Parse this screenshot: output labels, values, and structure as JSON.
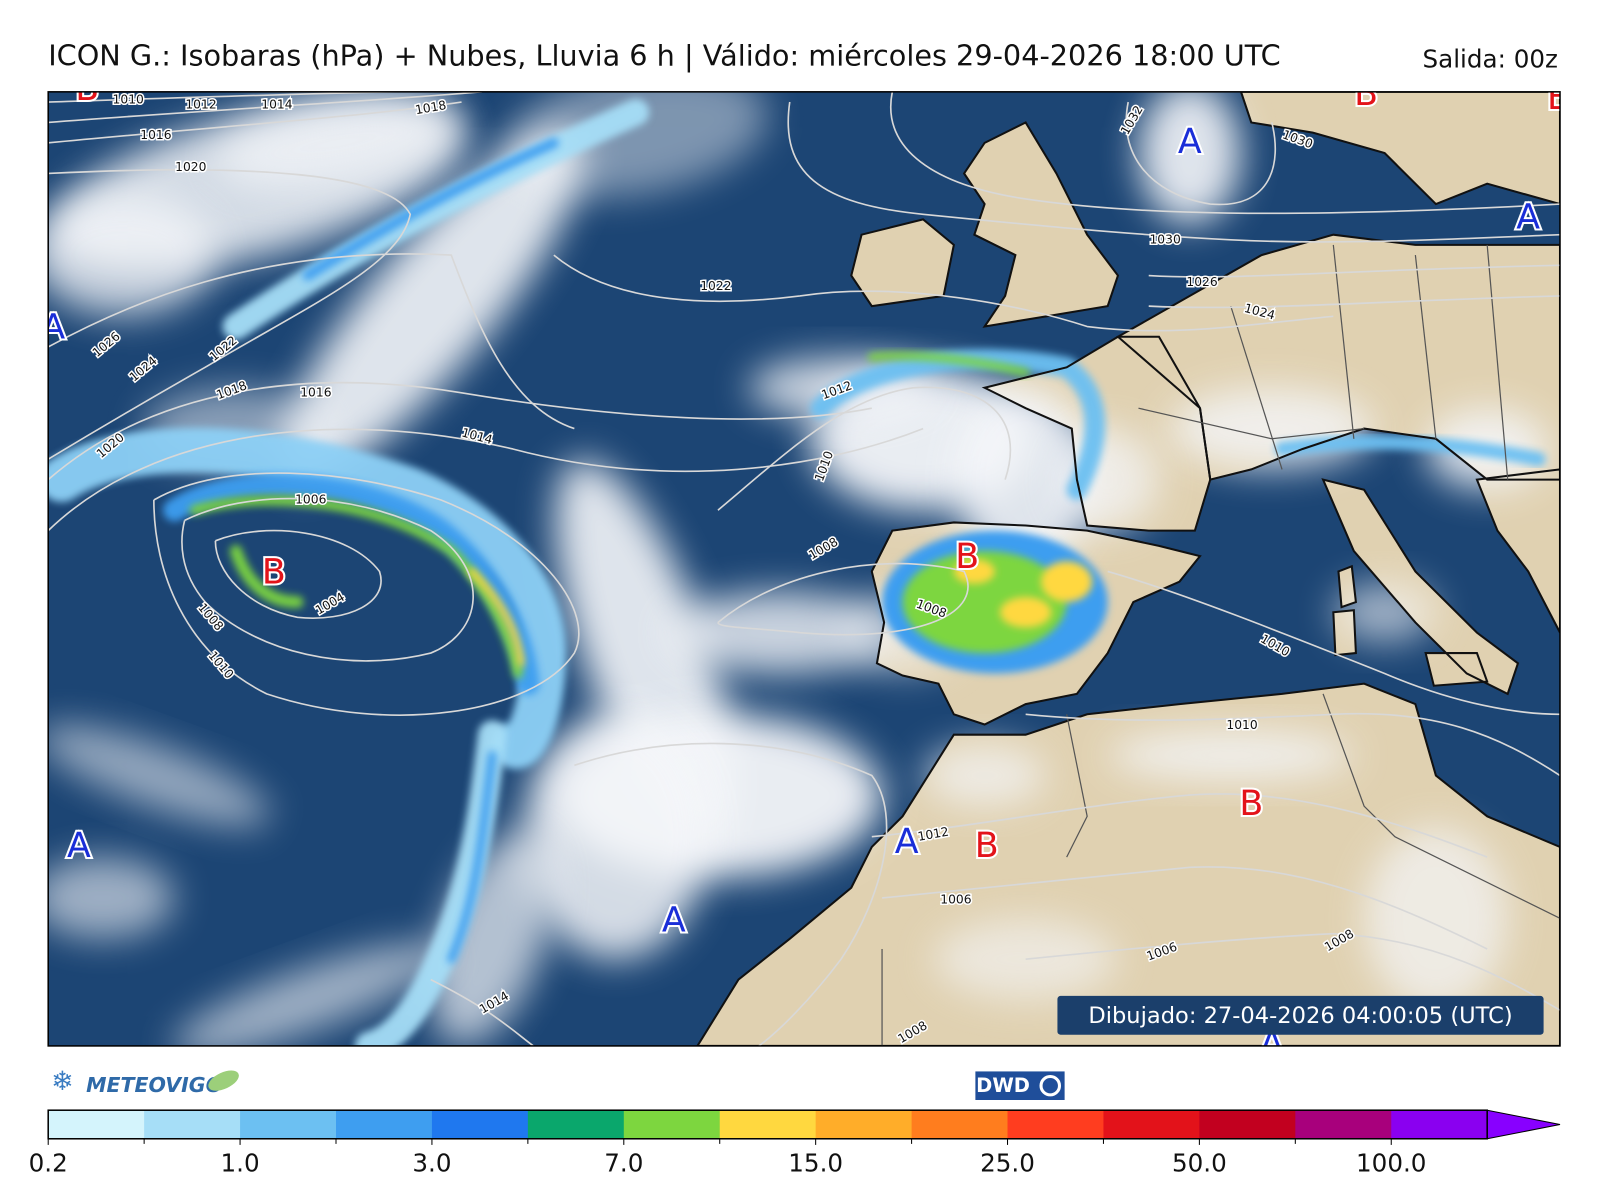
{
  "title": "ICON G.: Isobaras (hPa) + Nubes, Lluvia 6 h | Válido: miércoles 29-04-2026 18:00 UTC",
  "run": "Salida: 00z",
  "drawn": "Dibujado: 27-04-2026 04:00:05 (UTC)",
  "logo_left": "METEOVIGO",
  "logo_right": "DWD",
  "pressure_centers": [
    "B",
    "B",
    "B",
    "A",
    "A",
    "A",
    "B",
    "B",
    "A",
    "A",
    "B",
    "B",
    "A",
    "A"
  ],
  "isobar_labels": [
    1010,
    1012,
    1014,
    1018,
    1016,
    1020,
    1026,
    1024,
    1022,
    1018,
    1016,
    1020,
    1014,
    1006,
    1004,
    1008,
    1010,
    1022,
    1012,
    1010,
    1008,
    1008,
    1032,
    1030,
    1030,
    1026,
    1024,
    1010,
    1010,
    1012,
    1006,
    1006,
    1008,
    1014,
    1008
  ],
  "colorbar": {
    "colors": [
      "#d4f4fc",
      "#a6def7",
      "#6cc0f2",
      "#3e9ef0",
      "#1f78ef",
      "#0aa76c",
      "#7dd63f",
      "#ffd83f",
      "#ffad29",
      "#ff7d1e",
      "#ff3d1f",
      "#e3121a",
      "#c2001f",
      "#a8007c",
      "#8a00f0"
    ],
    "extend_color": "#8800ff",
    "ticks": [
      0.2,
      {
        "value": 1,
        "label": "1.0"
      },
      {
        "value": 3,
        "label": "3.0"
      },
      {
        "value": 7,
        "label": "7.0"
      },
      {
        "value": 15,
        "label": "15.0"
      },
      {
        "value": 25,
        "label": "25.0"
      },
      {
        "value": 50,
        "label": "50.0"
      },
      {
        "value": 100,
        "label": "100.0"
      }
    ]
  }
}
